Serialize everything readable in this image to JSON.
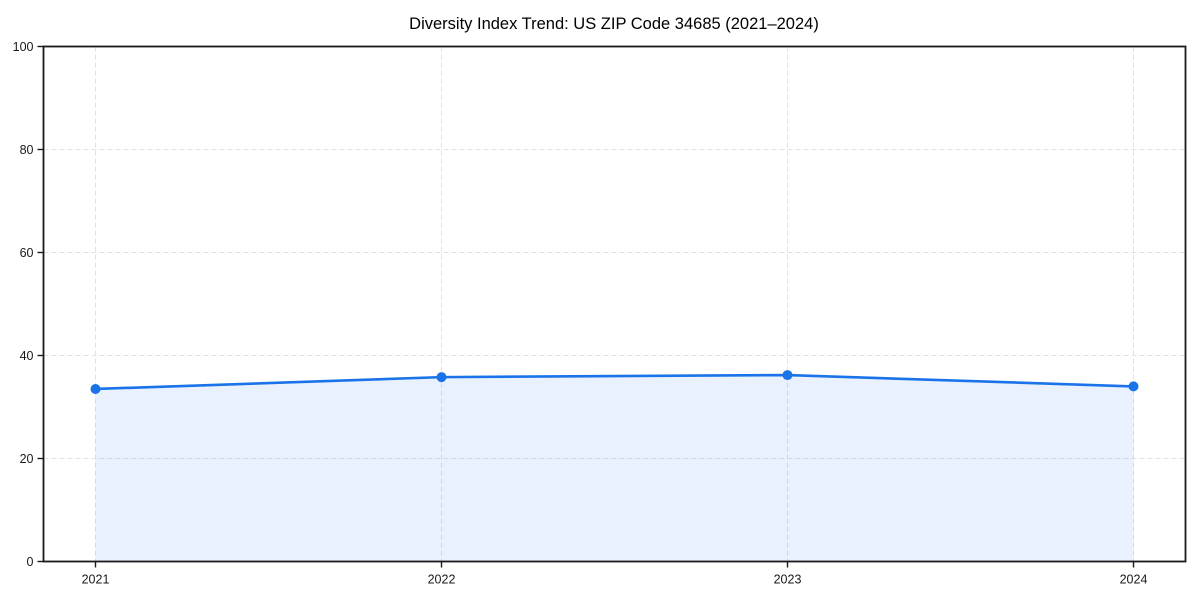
{
  "page": {
    "background_color": "#ffffff"
  },
  "chart_data": {
    "type": "area",
    "title": "Diversity Index Trend: US ZIP Code 34685 (2021–2024)",
    "categories": [
      "2021",
      "2022",
      "2023",
      "2024"
    ],
    "series": [
      {
        "name": "Diversity Index",
        "values": [
          33.5,
          35.8,
          36.2,
          34.0
        ]
      }
    ],
    "xlabel": "",
    "ylabel": "",
    "ylim": [
      0,
      100
    ],
    "yticks": [
      0,
      20,
      40,
      60,
      80,
      100
    ],
    "grid": "dashed",
    "legend_position": "none",
    "line_color": "#1a73e8",
    "marker_color": "#1a73e8",
    "fill_color": "#1a73e8",
    "fill_opacity": 0.1,
    "grid_color": "#e2e2e2",
    "spine_color": "#1a1a1a",
    "tick_label_color": "#1a1a1a",
    "title_color": "#000000"
  }
}
